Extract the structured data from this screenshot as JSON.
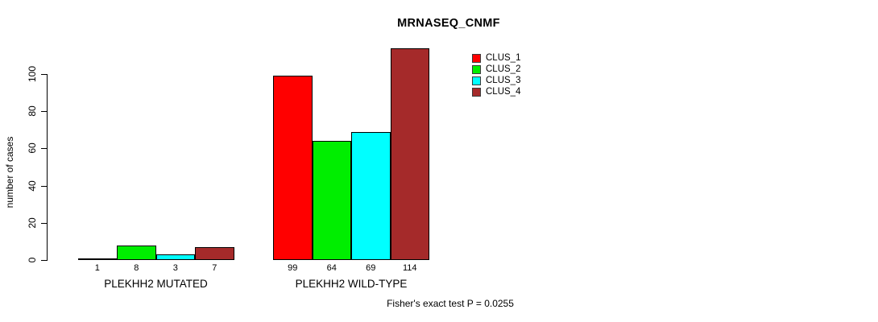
{
  "chart_data": {
    "type": "bar",
    "title": "MRNASEQ_CNMF",
    "xlabel": "",
    "ylabel": "number of cases",
    "categories": [
      "PLEKHH2 MUTATED",
      "PLEKHH2 WILD-TYPE"
    ],
    "series": [
      {
        "name": "CLUS_1",
        "color": "#ff0000",
        "values": [
          1,
          99
        ]
      },
      {
        "name": "CLUS_2",
        "color": "#00ee00",
        "values": [
          8,
          64
        ]
      },
      {
        "name": "CLUS_3",
        "color": "#00ffff",
        "values": [
          3,
          69
        ]
      },
      {
        "name": "CLUS_4",
        "color": "#a52a2a",
        "values": [
          7,
          114
        ]
      }
    ],
    "yticks": [
      0,
      20,
      40,
      60,
      80,
      100
    ],
    "ylim": [
      0,
      116
    ],
    "grid": false,
    "bar_value_labels_shown": true,
    "legend_position": "top-right",
    "legend_entries": [
      "CLUS_1",
      "CLUS_2",
      "CLUS_3",
      "CLUS_4"
    ],
    "annotation": "Fisher's exact test P = 0.0255"
  }
}
